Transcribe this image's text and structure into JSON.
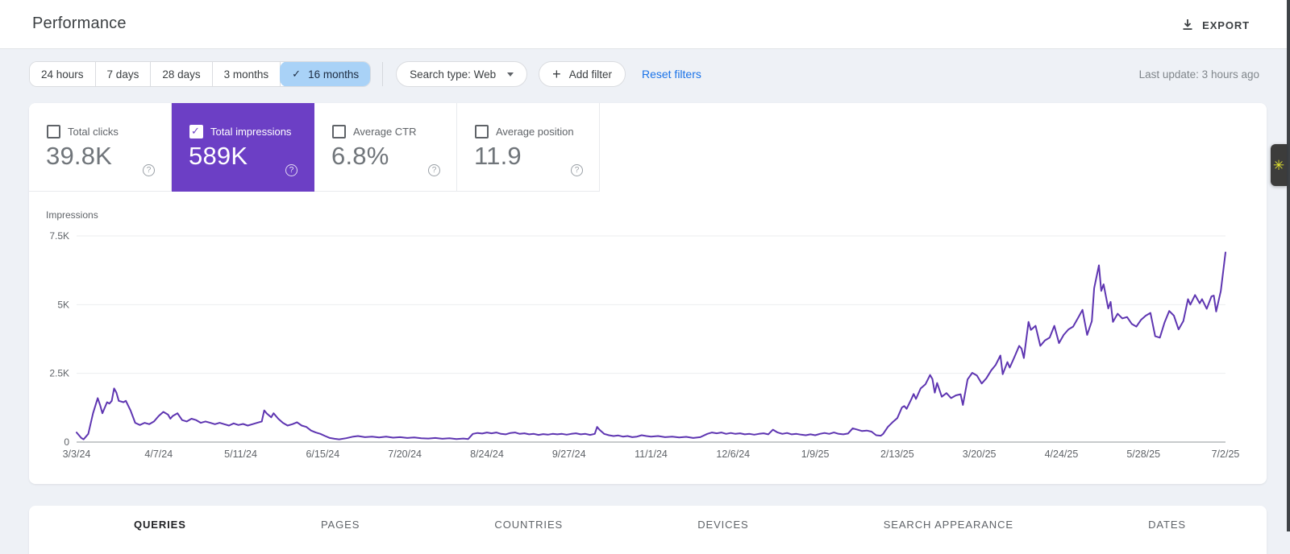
{
  "header": {
    "title": "Performance",
    "export_label": "EXPORT"
  },
  "filters": {
    "date_ranges": [
      {
        "label": "24 hours",
        "selected": false
      },
      {
        "label": "7 days",
        "selected": false
      },
      {
        "label": "28 days",
        "selected": false
      },
      {
        "label": "3 months",
        "selected": false
      },
      {
        "label": "16 months",
        "selected": true
      }
    ],
    "search_type_label": "Search type: Web",
    "add_filter_label": "Add filter",
    "reset_filters_label": "Reset filters",
    "last_update": "Last update: 3 hours ago"
  },
  "metric_cards": [
    {
      "label": "Total clicks",
      "value": "39.8K",
      "checked": false,
      "selected": false
    },
    {
      "label": "Total impressions",
      "value": "589K",
      "checked": true,
      "selected": true
    },
    {
      "label": "Average CTR",
      "value": "6.8%",
      "checked": false,
      "selected": false
    },
    {
      "label": "Average position",
      "value": "11.9",
      "checked": false,
      "selected": false
    }
  ],
  "colors": {
    "impressions_purple": "#6c3fc5",
    "line_purple": "#5e35b1",
    "link_blue": "#1a73e8",
    "chip_selected_bg": "#a9d2f7"
  },
  "chart_data": {
    "type": "line",
    "title": "Impressions",
    "ylabel": "Impressions",
    "ylim": [
      0,
      7500
    ],
    "y_ticks": [
      {
        "label": "0",
        "value": 0
      },
      {
        "label": "2.5K",
        "value": 2500
      },
      {
        "label": "5K",
        "value": 5000
      },
      {
        "label": "7.5K",
        "value": 7500
      }
    ],
    "x_ticks": [
      {
        "label": "3/3/24",
        "day": 0
      },
      {
        "label": "4/7/24",
        "day": 35
      },
      {
        "label": "5/11/24",
        "day": 70
      },
      {
        "label": "6/15/24",
        "day": 105
      },
      {
        "label": "7/20/24",
        "day": 140
      },
      {
        "label": "8/24/24",
        "day": 175
      },
      {
        "label": "9/27/24",
        "day": 210
      },
      {
        "label": "11/1/24",
        "day": 245
      },
      {
        "label": "12/6/24",
        "day": 280
      },
      {
        "label": "1/9/25",
        "day": 315
      },
      {
        "label": "2/13/25",
        "day": 350
      },
      {
        "label": "3/20/25",
        "day": 385
      },
      {
        "label": "4/24/25",
        "day": 420
      },
      {
        "label": "5/28/25",
        "day": 455
      },
      {
        "label": "7/2/25",
        "day": 490
      }
    ],
    "x_domain_days": [
      0,
      490
    ],
    "grid": true,
    "legend": false,
    "series": [
      {
        "name": "Impressions",
        "points": [
          [
            0,
            350
          ],
          [
            2,
            150
          ],
          [
            3,
            100
          ],
          [
            5,
            300
          ],
          [
            7,
            1050
          ],
          [
            9,
            1600
          ],
          [
            10,
            1350
          ],
          [
            11,
            1050
          ],
          [
            13,
            1450
          ],
          [
            14,
            1400
          ],
          [
            15,
            1500
          ],
          [
            16,
            1950
          ],
          [
            17,
            1800
          ],
          [
            18,
            1500
          ],
          [
            20,
            1450
          ],
          [
            21,
            1500
          ],
          [
            23,
            1150
          ],
          [
            25,
            700
          ],
          [
            27,
            620
          ],
          [
            29,
            700
          ],
          [
            31,
            650
          ],
          [
            33,
            750
          ],
          [
            35,
            950
          ],
          [
            37,
            1100
          ],
          [
            39,
            1000
          ],
          [
            40,
            850
          ],
          [
            41,
            950
          ],
          [
            43,
            1050
          ],
          [
            45,
            800
          ],
          [
            47,
            750
          ],
          [
            49,
            850
          ],
          [
            51,
            800
          ],
          [
            53,
            700
          ],
          [
            55,
            750
          ],
          [
            57,
            700
          ],
          [
            59,
            650
          ],
          [
            61,
            700
          ],
          [
            63,
            650
          ],
          [
            65,
            600
          ],
          [
            67,
            680
          ],
          [
            69,
            620
          ],
          [
            71,
            660
          ],
          [
            73,
            600
          ],
          [
            75,
            650
          ],
          [
            77,
            700
          ],
          [
            79,
            750
          ],
          [
            80,
            1150
          ],
          [
            81,
            1050
          ],
          [
            83,
            900
          ],
          [
            84,
            1050
          ],
          [
            86,
            850
          ],
          [
            88,
            700
          ],
          [
            90,
            600
          ],
          [
            92,
            650
          ],
          [
            94,
            720
          ],
          [
            96,
            600
          ],
          [
            98,
            550
          ],
          [
            100,
            420
          ],
          [
            102,
            350
          ],
          [
            104,
            300
          ],
          [
            106,
            220
          ],
          [
            108,
            150
          ],
          [
            110,
            120
          ],
          [
            112,
            100
          ],
          [
            115,
            140
          ],
          [
            118,
            200
          ],
          [
            120,
            220
          ],
          [
            123,
            180
          ],
          [
            126,
            200
          ],
          [
            129,
            170
          ],
          [
            132,
            200
          ],
          [
            135,
            160
          ],
          [
            138,
            180
          ],
          [
            141,
            150
          ],
          [
            144,
            170
          ],
          [
            147,
            140
          ],
          [
            150,
            130
          ],
          [
            153,
            150
          ],
          [
            156,
            120
          ],
          [
            159,
            140
          ],
          [
            162,
            110
          ],
          [
            165,
            130
          ],
          [
            167,
            110
          ],
          [
            169,
            300
          ],
          [
            171,
            330
          ],
          [
            173,
            310
          ],
          [
            175,
            350
          ],
          [
            177,
            320
          ],
          [
            179,
            350
          ],
          [
            181,
            300
          ],
          [
            183,
            280
          ],
          [
            185,
            330
          ],
          [
            187,
            350
          ],
          [
            189,
            300
          ],
          [
            191,
            320
          ],
          [
            193,
            280
          ],
          [
            195,
            300
          ],
          [
            197,
            260
          ],
          [
            199,
            290
          ],
          [
            201,
            270
          ],
          [
            203,
            300
          ],
          [
            205,
            280
          ],
          [
            207,
            300
          ],
          [
            209,
            270
          ],
          [
            211,
            300
          ],
          [
            213,
            320
          ],
          [
            215,
            280
          ],
          [
            217,
            300
          ],
          [
            219,
            260
          ],
          [
            221,
            300
          ],
          [
            222,
            550
          ],
          [
            223,
            450
          ],
          [
            225,
            300
          ],
          [
            227,
            250
          ],
          [
            229,
            220
          ],
          [
            231,
            240
          ],
          [
            233,
            200
          ],
          [
            235,
            220
          ],
          [
            237,
            180
          ],
          [
            239,
            200
          ],
          [
            241,
            250
          ],
          [
            243,
            220
          ],
          [
            245,
            200
          ],
          [
            248,
            220
          ],
          [
            251,
            180
          ],
          [
            254,
            200
          ],
          [
            257,
            170
          ],
          [
            260,
            190
          ],
          [
            263,
            150
          ],
          [
            266,
            180
          ],
          [
            269,
            300
          ],
          [
            271,
            350
          ],
          [
            273,
            320
          ],
          [
            275,
            350
          ],
          [
            277,
            300
          ],
          [
            279,
            330
          ],
          [
            281,
            300
          ],
          [
            283,
            320
          ],
          [
            285,
            280
          ],
          [
            287,
            300
          ],
          [
            289,
            270
          ],
          [
            291,
            300
          ],
          [
            293,
            320
          ],
          [
            295,
            280
          ],
          [
            297,
            450
          ],
          [
            299,
            350
          ],
          [
            301,
            300
          ],
          [
            303,
            330
          ],
          [
            305,
            280
          ],
          [
            307,
            300
          ],
          [
            309,
            270
          ],
          [
            311,
            250
          ],
          [
            313,
            280
          ],
          [
            315,
            250
          ],
          [
            317,
            300
          ],
          [
            319,
            330
          ],
          [
            321,
            300
          ],
          [
            323,
            350
          ],
          [
            325,
            300
          ],
          [
            327,
            280
          ],
          [
            329,
            310
          ],
          [
            331,
            500
          ],
          [
            333,
            450
          ],
          [
            335,
            400
          ],
          [
            337,
            420
          ],
          [
            339,
            380
          ],
          [
            341,
            250
          ],
          [
            343,
            230
          ],
          [
            344,
            300
          ],
          [
            346,
            550
          ],
          [
            348,
            720
          ],
          [
            350,
            870
          ],
          [
            352,
            1260
          ],
          [
            353,
            1310
          ],
          [
            354,
            1210
          ],
          [
            356,
            1560
          ],
          [
            357,
            1750
          ],
          [
            358,
            1570
          ],
          [
            360,
            1950
          ],
          [
            362,
            2100
          ],
          [
            364,
            2440
          ],
          [
            365,
            2290
          ],
          [
            366,
            1800
          ],
          [
            367,
            2150
          ],
          [
            369,
            1650
          ],
          [
            371,
            1780
          ],
          [
            373,
            1600
          ],
          [
            375,
            1700
          ],
          [
            377,
            1740
          ],
          [
            378,
            1350
          ],
          [
            380,
            2280
          ],
          [
            382,
            2520
          ],
          [
            384,
            2420
          ],
          [
            386,
            2130
          ],
          [
            388,
            2320
          ],
          [
            390,
            2600
          ],
          [
            392,
            2810
          ],
          [
            394,
            3150
          ],
          [
            395,
            2470
          ],
          [
            397,
            2910
          ],
          [
            398,
            2710
          ],
          [
            400,
            3100
          ],
          [
            402,
            3500
          ],
          [
            403,
            3400
          ],
          [
            404,
            3060
          ],
          [
            406,
            4370
          ],
          [
            407,
            4080
          ],
          [
            409,
            4230
          ],
          [
            411,
            3500
          ],
          [
            413,
            3700
          ],
          [
            415,
            3800
          ],
          [
            417,
            4230
          ],
          [
            419,
            3600
          ],
          [
            421,
            3900
          ],
          [
            423,
            4100
          ],
          [
            425,
            4200
          ],
          [
            427,
            4500
          ],
          [
            429,
            4810
          ],
          [
            431,
            3900
          ],
          [
            433,
            4400
          ],
          [
            434,
            5600
          ],
          [
            436,
            6430
          ],
          [
            437,
            5500
          ],
          [
            438,
            5740
          ],
          [
            440,
            4860
          ],
          [
            441,
            5100
          ],
          [
            442,
            4370
          ],
          [
            444,
            4670
          ],
          [
            446,
            4500
          ],
          [
            448,
            4550
          ],
          [
            450,
            4300
          ],
          [
            452,
            4200
          ],
          [
            454,
            4450
          ],
          [
            456,
            4600
          ],
          [
            458,
            4700
          ],
          [
            460,
            3850
          ],
          [
            462,
            3800
          ],
          [
            464,
            4350
          ],
          [
            466,
            4770
          ],
          [
            468,
            4600
          ],
          [
            470,
            4100
          ],
          [
            472,
            4400
          ],
          [
            474,
            5200
          ],
          [
            475,
            5000
          ],
          [
            477,
            5350
          ],
          [
            479,
            5050
          ],
          [
            480,
            5200
          ],
          [
            482,
            4850
          ],
          [
            484,
            5300
          ],
          [
            485,
            5330
          ],
          [
            486,
            4750
          ],
          [
            488,
            5500
          ],
          [
            490,
            6900
          ]
        ]
      }
    ]
  },
  "bottom_tabs": [
    {
      "label": "QUERIES",
      "selected": true
    },
    {
      "label": "PAGES",
      "selected": false
    },
    {
      "label": "COUNTRIES",
      "selected": false
    },
    {
      "label": "DEVICES",
      "selected": false
    },
    {
      "label": "SEARCH APPEARANCE",
      "selected": false
    },
    {
      "label": "DATES",
      "selected": false
    }
  ],
  "misc": {
    "extension_icon": "✳",
    "check_glyph": "✓",
    "plus_glyph": "+",
    "help_glyph": "?"
  }
}
